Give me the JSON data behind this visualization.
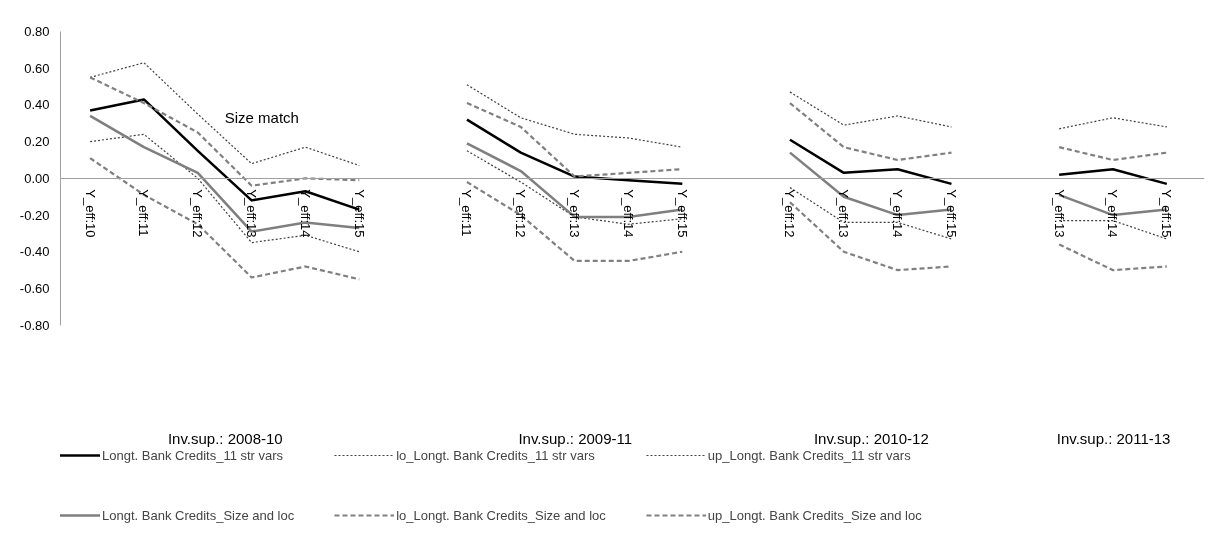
{
  "chart_data": {
    "type": "line",
    "categories": [
      "Y_eff:10",
      "Y_eff:11",
      "Y_eff:12",
      "Y_eff:13",
      "Y_eff:14",
      "Y_eff:15",
      null,
      "Y_eff:11",
      "Y_eff:12",
      "Y_eff:13",
      "Y_eff:14",
      "Y_eff:15",
      null,
      "Y_eff:12",
      "Y_eff:13",
      "Y_eff:14",
      "Y_eff:15",
      null,
      "Y_eff:13",
      "Y_eff:14",
      "Y_eff:15"
    ],
    "series": [
      {
        "name": "Longt. Bank Credits_11 str vars",
        "color": "#000000",
        "line_style": "solid",
        "values": [
          0.37,
          0.43,
          0.15,
          -0.12,
          -0.07,
          -0.17,
          null,
          0.32,
          0.14,
          0.01,
          -0.01,
          -0.03,
          null,
          0.21,
          0.03,
          0.05,
          -0.03,
          null,
          0.02,
          0.05,
          -0.03
        ]
      },
      {
        "name": "lo_Longt. Bank Credits_11 str vars",
        "color": "#404040",
        "line_style": "dotted",
        "values": [
          0.2,
          0.24,
          0.0,
          -0.35,
          -0.31,
          -0.4,
          null,
          0.15,
          -0.02,
          -0.21,
          -0.25,
          -0.22,
          null,
          -0.05,
          -0.24,
          -0.24,
          -0.33,
          null,
          -0.23,
          -0.23,
          -0.33
        ]
      },
      {
        "name": "up_Longt. Bank Credits_11 str vars",
        "color": "#404040",
        "line_style": "dotted",
        "values": [
          0.55,
          0.63,
          0.35,
          0.08,
          0.17,
          0.07,
          null,
          0.51,
          0.33,
          0.24,
          0.22,
          0.17,
          null,
          0.47,
          0.29,
          0.34,
          0.28,
          null,
          0.27,
          0.33,
          0.28
        ]
      },
      {
        "name": "Longt. Bank Credits_Size and loc",
        "color": "#7f7f7f",
        "line_style": "solid",
        "values": [
          0.34,
          0.17,
          0.03,
          -0.29,
          -0.24,
          -0.27,
          null,
          0.19,
          0.04,
          -0.21,
          -0.21,
          -0.17,
          null,
          0.14,
          -0.1,
          -0.2,
          -0.17,
          null,
          -0.09,
          -0.2,
          -0.17
        ]
      },
      {
        "name": "lo_Longt. Bank Credits_Size and loc",
        "color": "#808080",
        "line_style": "dashed",
        "values": [
          0.11,
          -0.09,
          -0.25,
          -0.54,
          -0.48,
          -0.55,
          null,
          -0.02,
          -0.2,
          -0.45,
          -0.45,
          -0.4,
          null,
          -0.13,
          -0.4,
          -0.5,
          -0.48,
          null,
          -0.36,
          -0.5,
          -0.48
        ]
      },
      {
        "name": "up_Longt. Bank Credits_Size and loc",
        "color": "#808080",
        "line_style": "dashed",
        "values": [
          0.55,
          0.41,
          0.25,
          -0.04,
          0.0,
          -0.01,
          null,
          0.41,
          0.28,
          0.01,
          0.03,
          0.05,
          null,
          0.41,
          0.17,
          0.1,
          0.14,
          null,
          0.17,
          0.1,
          0.14
        ]
      }
    ],
    "ylim": [
      -0.8,
      0.8
    ],
    "yticks": [
      {
        "value": -0.8,
        "label": "-0.80"
      },
      {
        "value": -0.6,
        "label": "-0.60"
      },
      {
        "value": -0.4,
        "label": "-0.40"
      },
      {
        "value": -0.2,
        "label": "-0.20"
      },
      {
        "value": 0,
        "label": "0.00"
      },
      {
        "value": 0.2,
        "label": "0.20"
      },
      {
        "value": 0.4,
        "label": "0.40"
      },
      {
        "value": 0.6,
        "label": "0.60"
      },
      {
        "value": 0.8,
        "label": "0.80"
      }
    ],
    "annotations": [
      "Size match",
      "Inv.sup.:  2008-10",
      "Inv.sup.:  2009-11",
      "Inv.sup.:  2010-12",
      "Inv.sup.:  2011-13"
    ],
    "legend": "bottom"
  }
}
